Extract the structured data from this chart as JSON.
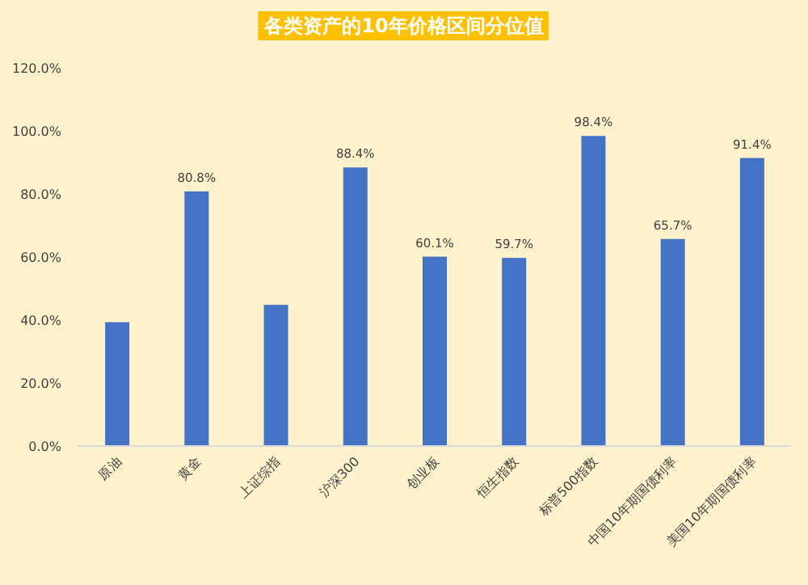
{
  "chart_data": {
    "type": "bar",
    "title": "各类资产的10年价格区间分位值",
    "categories": [
      "原油",
      "黄金",
      "上证综指",
      "沪深300",
      "创业板",
      "恒生指数",
      "标普500指数",
      "中国10年期国债利率",
      "美国10年期国债利率"
    ],
    "values": [
      39.3,
      80.8,
      44.8,
      88.4,
      60.1,
      59.7,
      98.4,
      65.7,
      91.4
    ],
    "value_labels": [
      null,
      "80.8%",
      null,
      "88.4%",
      "60.1%",
      "59.7%",
      "98.4%",
      "65.7%",
      "91.4%"
    ],
    "color": "#4472c4",
    "ylim": [
      0,
      120
    ],
    "yticks": [
      {
        "value": 0,
        "label": "0.0%"
      },
      {
        "value": 20,
        "label": "20.0%"
      },
      {
        "value": 40,
        "label": "40.0%"
      },
      {
        "value": 60,
        "label": "60.0%"
      },
      {
        "value": 80,
        "label": "80.0%"
      },
      {
        "value": 100,
        "label": "100.0%"
      },
      {
        "value": 120,
        "label": "120.0%"
      }
    ],
    "grid": false
  }
}
